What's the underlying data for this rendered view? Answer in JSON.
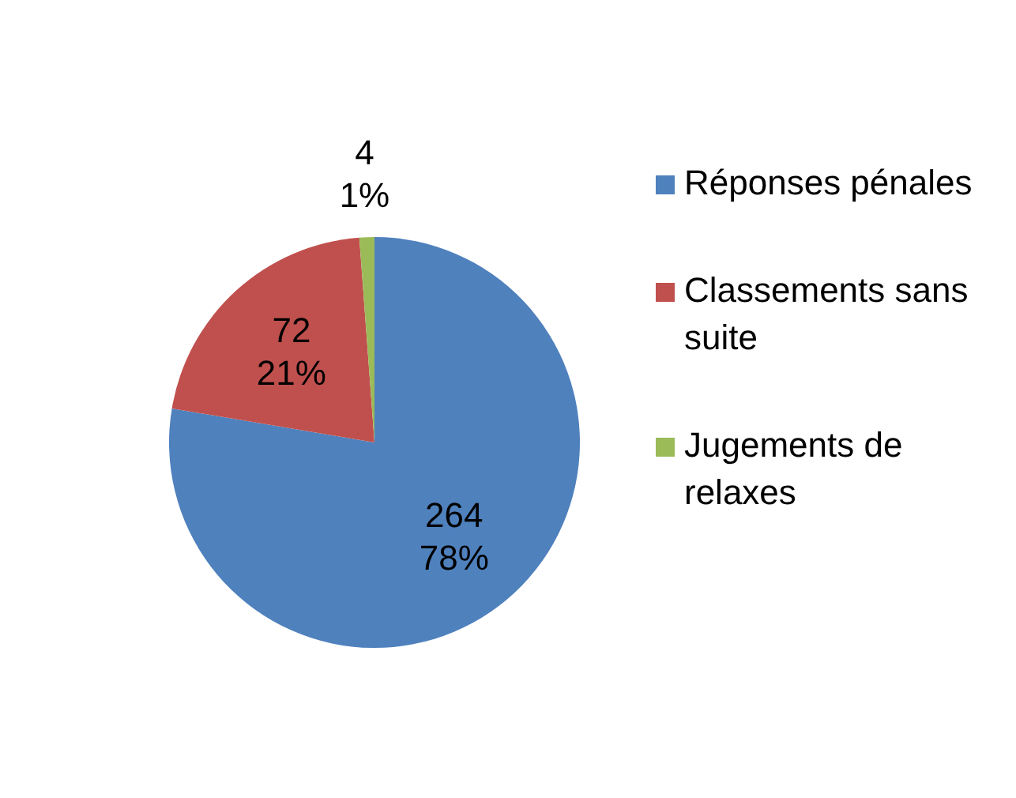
{
  "chart_data": {
    "type": "pie",
    "categories": [
      "Réponses pénales",
      "Classements sans suite",
      "Jugements de relaxes"
    ],
    "values": [
      264,
      72,
      4
    ],
    "colors": [
      "#4f81bd",
      "#c0504d",
      "#9bbb59"
    ],
    "value_labels": [
      "264\n78%",
      "72\n21%",
      "4\n1%"
    ],
    "legend": "right"
  }
}
